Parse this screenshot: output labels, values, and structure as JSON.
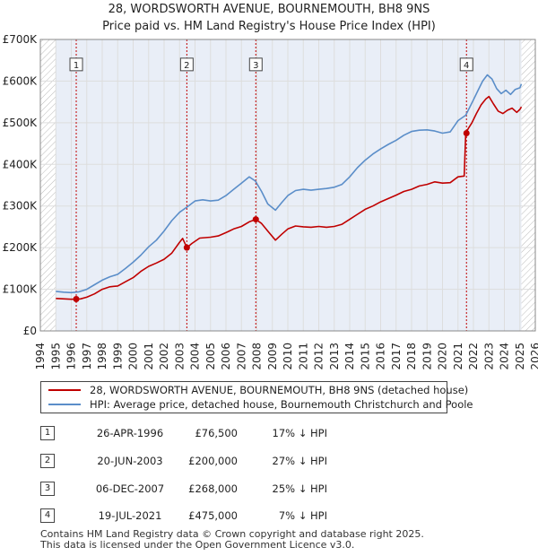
{
  "chart_data": {
    "type": "line",
    "title": "28, WORDSWORTH AVENUE, BOURNEMOUTH, BH8 9NS",
    "subtitle": "Price paid vs. HM Land Registry's House Price Index (HPI)",
    "x_range": [
      1994,
      2026
    ],
    "ylim": [
      0,
      700000
    ],
    "y_ticks": [
      0,
      100000,
      200000,
      300000,
      400000,
      500000,
      600000,
      700000
    ],
    "y_tick_labels": [
      "£0",
      "£100K",
      "£200K",
      "£300K",
      "£400K",
      "£500K",
      "£600K",
      "£700K"
    ],
    "x_ticks": [
      1994,
      1995,
      1996,
      1997,
      1998,
      1999,
      2000,
      2001,
      2002,
      2003,
      2004,
      2005,
      2006,
      2007,
      2008,
      2009,
      2010,
      2011,
      2012,
      2013,
      2014,
      2015,
      2016,
      2017,
      2018,
      2019,
      2020,
      2021,
      2022,
      2023,
      2024,
      2025,
      2026
    ],
    "x_tick_labels": [
      "1994",
      "1995",
      "1996",
      "1997",
      "1998",
      "1999",
      "2000",
      "2001",
      "2002",
      "2003",
      "2004",
      "2005",
      "2006",
      "2007",
      "2008",
      "2009",
      "2010",
      "2011",
      "2012",
      "2013",
      "2014",
      "2015",
      "2016",
      "2017",
      "2018",
      "2019",
      "2020",
      "2021",
      "2022",
      "2023",
      "2024",
      "2025",
      "2026"
    ],
    "data_start": 1995.0,
    "data_end": 2025.1,
    "series": [
      {
        "name": "28, WORDSWORTH AVENUE, BOURNEMOUTH, BH8 9NS (detached house)",
        "color": "#c00000",
        "x": [
          1995.0,
          1996.0,
          1996.32,
          1996.6,
          1997.0,
          1997.5,
          1998.0,
          1998.5,
          1999.0,
          1999.5,
          2000.0,
          2000.5,
          2001.0,
          2001.5,
          2002.0,
          2002.5,
          2003.0,
          2003.2,
          2003.47,
          2003.8,
          2004.3,
          2005.0,
          2005.5,
          2006.0,
          2006.5,
          2007.0,
          2007.5,
          2007.93,
          2008.3,
          2008.7,
          2009.2,
          2009.6,
          2010.0,
          2010.5,
          2011.0,
          2011.5,
          2012.0,
          2012.5,
          2013.0,
          2013.5,
          2014.0,
          2014.5,
          2015.0,
          2015.5,
          2016.0,
          2016.5,
          2017.0,
          2017.5,
          2018.0,
          2018.5,
          2019.0,
          2019.5,
          2020.0,
          2020.5,
          2021.0,
          2021.4,
          2021.5,
          2021.7,
          2021.9,
          2022.2,
          2022.5,
          2022.8,
          2023.0,
          2023.3,
          2023.6,
          2023.9,
          2024.2,
          2024.5,
          2024.8,
          2025.0,
          2025.1
        ],
        "values": [
          78000,
          76000,
          76500,
          77000,
          81000,
          89000,
          100000,
          106000,
          108000,
          118000,
          128000,
          143000,
          155000,
          163000,
          172000,
          187000,
          213000,
          222000,
          200000,
          210000,
          223000,
          225000,
          228000,
          236000,
          245000,
          251000,
          262000,
          268000,
          258000,
          240000,
          218000,
          232000,
          245000,
          252000,
          250000,
          249000,
          251000,
          249000,
          251000,
          256000,
          268000,
          280000,
          292000,
          300000,
          310000,
          318000,
          326000,
          335000,
          340000,
          348000,
          352000,
          358000,
          355000,
          356000,
          370000,
          372000,
          475000,
          488000,
          500000,
          523000,
          543000,
          557000,
          563000,
          545000,
          528000,
          522000,
          530000,
          535000,
          525000,
          532000,
          538000
        ]
      },
      {
        "name": "HPI: Average price, detached house, Bournemouth Christchurch and Poole",
        "color": "#5b8ec9",
        "x": [
          1995.0,
          1995.5,
          1996.0,
          1996.5,
          1997.0,
          1997.5,
          1998.0,
          1998.5,
          1999.0,
          1999.5,
          2000.0,
          2000.5,
          2001.0,
          2001.5,
          2002.0,
          2002.5,
          2003.0,
          2003.5,
          2004.0,
          2004.5,
          2005.0,
          2005.5,
          2006.0,
          2006.5,
          2007.0,
          2007.5,
          2007.9,
          2008.3,
          2008.7,
          2009.2,
          2009.6,
          2010.0,
          2010.5,
          2011.0,
          2011.5,
          2012.0,
          2012.5,
          2013.0,
          2013.5,
          2014.0,
          2014.5,
          2015.0,
          2015.5,
          2016.0,
          2016.5,
          2017.0,
          2017.5,
          2018.0,
          2018.5,
          2019.0,
          2019.5,
          2020.0,
          2020.5,
          2021.0,
          2021.5,
          2022.0,
          2022.3,
          2022.6,
          2022.9,
          2023.2,
          2023.5,
          2023.8,
          2024.1,
          2024.4,
          2024.7,
          2025.0,
          2025.1
        ],
        "values": [
          95000,
          93000,
          92000,
          94000,
          100000,
          111000,
          122000,
          130000,
          136000,
          150000,
          165000,
          182000,
          202000,
          218000,
          240000,
          265000,
          285000,
          298000,
          312000,
          315000,
          312000,
          314000,
          325000,
          340000,
          355000,
          370000,
          360000,
          335000,
          305000,
          290000,
          308000,
          325000,
          337000,
          340000,
          338000,
          340000,
          342000,
          345000,
          352000,
          370000,
          392000,
          410000,
          425000,
          437000,
          448000,
          458000,
          470000,
          479000,
          482000,
          483000,
          480000,
          475000,
          478000,
          505000,
          518000,
          555000,
          578000,
          600000,
          615000,
          605000,
          582000,
          570000,
          578000,
          568000,
          580000,
          584000,
          593000
        ]
      }
    ],
    "sales": [
      {
        "label": "1",
        "x": 1996.32,
        "price": 76500
      },
      {
        "label": "2",
        "x": 2003.47,
        "price": 200000
      },
      {
        "label": "3",
        "x": 2007.93,
        "price": 268000
      },
      {
        "label": "4",
        "x": 2021.55,
        "price": 475000
      }
    ],
    "marker_label_value": 640000
  },
  "title_line1": "28, WORDSWORTH AVENUE, BOURNEMOUTH, BH8 9NS",
  "title_line2": "Price paid vs. HM Land Registry's House Price Index (HPI)",
  "legend": {
    "property": "28, WORDSWORTH AVENUE, BOURNEMOUTH, BH8 9NS (detached house)",
    "hpi": "HPI: Average price, detached house, Bournemouth Christchurch and Poole"
  },
  "colors": {
    "property": "#c00000",
    "hpi": "#5b8ec9",
    "band": "#e9eef7",
    "grid": "#dddddd"
  },
  "table": [
    {
      "num": "1",
      "date": "26-APR-1996",
      "price": "£76,500",
      "pct": "17% ↓ HPI"
    },
    {
      "num": "2",
      "date": "20-JUN-2003",
      "price": "£200,000",
      "pct": "27% ↓ HPI"
    },
    {
      "num": "3",
      "date": "06-DEC-2007",
      "price": "£268,000",
      "pct": "25% ↓ HPI"
    },
    {
      "num": "4",
      "date": "19-JUL-2021",
      "price": "£475,000",
      "pct": "7% ↓ HPI"
    }
  ],
  "footer": {
    "line1": "Contains HM Land Registry data © Crown copyright and database right 2025.",
    "line2": "This data is licensed under the Open Government Licence v3.0."
  }
}
